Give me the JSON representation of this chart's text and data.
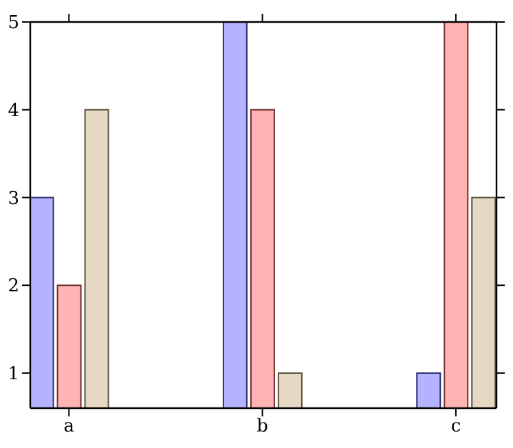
{
  "chart_data": {
    "type": "bar",
    "categories": [
      "a",
      "b",
      "c"
    ],
    "series": [
      {
        "color": "#b3b3ff",
        "values": [
          3,
          5,
          1
        ]
      },
      {
        "color": "#ffb3b3",
        "values": [
          2,
          4,
          5
        ]
      },
      {
        "color": "#e6d9c3",
        "values": [
          4,
          1,
          3
        ]
      }
    ],
    "ylim": [
      0.6,
      5
    ],
    "yticks": [
      1,
      2,
      3,
      4,
      5
    ]
  }
}
